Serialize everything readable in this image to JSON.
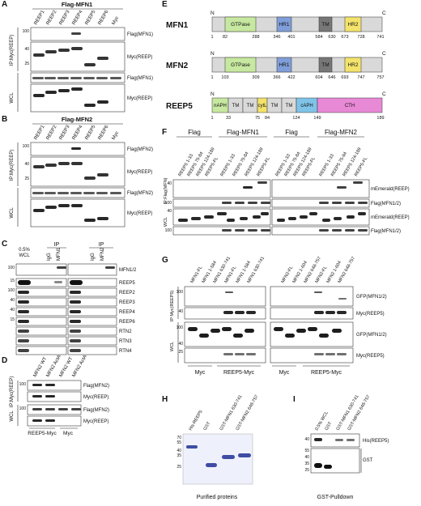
{
  "panels": {
    "A": {
      "letter": "A",
      "header": "Flag-MFN1",
      "lanes": [
        "REEP1",
        "REEP2",
        "REEP3",
        "REEP4",
        "REEP5",
        "REEP6",
        "Myc"
      ],
      "groups": [
        "IP:Myc(REEP)",
        "WCL"
      ],
      "rows": [
        "Flag(MFN1)",
        "Myc(REEP)",
        "Flag(MFN1)",
        "Myc(REEP)"
      ]
    },
    "B": {
      "letter": "B",
      "header": "Flag-MFN2",
      "lanes": [
        "REEP1",
        "REEP2",
        "REEP3",
        "REEP4",
        "REEP5",
        "REEP6",
        "Myc"
      ],
      "groups": [
        "IP:Myc(REEP)",
        "WCL"
      ],
      "rows": [
        "Flag(MFN2)",
        "Myc(REEP)",
        "Flag(MFN2)",
        "Myc(REEP)"
      ]
    },
    "C": {
      "letter": "C",
      "wcl": "0.5%\nWCL",
      "ip": "IP",
      "lanes_left": [
        "IgG",
        "MFN1"
      ],
      "lanes_right": [
        "IgG",
        "MFN2"
      ],
      "rows": [
        "MFN1/2",
        "REEP5",
        "REEP2",
        "REEP3",
        "REEP4",
        "REEP6",
        "RTN2",
        "RTN3",
        "RTN4"
      ]
    },
    "D": {
      "letter": "D",
      "lanes": [
        "MFN2 WT",
        "MFN2 ActA",
        "MFN2 WT",
        "MFN2 ActA"
      ],
      "groups": [
        "IP:Myc(REEP)",
        "WCL"
      ],
      "rows": [
        "Flag(MFN2)",
        "Myc(REEP)",
        "Flag(MFN2)",
        "Myc(REEP)"
      ],
      "bottom": [
        "REEP5-Myc",
        "Myc"
      ]
    },
    "E": {
      "letter": "E",
      "proteins": [
        {
          "name": "MFN1",
          "n": "N",
          "c": "C",
          "domains": [
            "GTPase",
            "HR1",
            "TM",
            "HR2"
          ],
          "ticks": [
            "1",
            "82",
            "288",
            "346",
            "401",
            "584",
            "630",
            "673",
            "728",
            "741"
          ]
        },
        {
          "name": "MFN2",
          "n": "N",
          "c": "C",
          "domains": [
            "GTPase",
            "HR1",
            "TM",
            "HR2"
          ],
          "ticks": [
            "1",
            "103",
            "309",
            "366",
            "422",
            "604",
            "646",
            "693",
            "747",
            "757"
          ]
        },
        {
          "name": "REEP5",
          "n": "N",
          "c": "C",
          "domains": [
            "nAPH",
            "TM",
            "TM",
            "cytL",
            "TM",
            "TM",
            "cAPH",
            "CTH"
          ],
          "ticks": [
            "1",
            "33",
            "75",
            "84",
            "124",
            "149",
            "189"
          ]
        }
      ]
    },
    "F": {
      "letter": "F",
      "headers": [
        "Flag",
        "Flag-MFN1",
        "Flag",
        "Flag-MFN2"
      ],
      "lanes": [
        "REEP5 1-33",
        "REEP5 75-84",
        "REEP5 124-189",
        "REEP5-FL"
      ],
      "groups": [
        "IP:Flag(MFN)",
        "WCL"
      ],
      "rows": [
        "mEmerald(REEP)",
        "Flag(MFN1/2)",
        "mEmerald(REEP)",
        "Flag(MFN1/2)"
      ]
    },
    "G": {
      "letter": "G",
      "lanes_left": [
        "MFN1-FL",
        "MFN1 1-584",
        "MFN1 630-741",
        "MFN1-FL",
        "MFN1 1-584",
        "MFN1 630-741"
      ],
      "lanes_right": [
        "MFN2-FL",
        "MFN2 1-604",
        "MFN2 648-757",
        "MFN2-FL",
        "MFN2 1-604",
        "MFN2 648-757"
      ],
      "groups": [
        "IP:Myc(REEP5)",
        "WCL"
      ],
      "rows": [
        "GFP(MFN1/2)",
        "Myc(REEP5)",
        "GFP(MFN1/2)",
        "Myc(REEP5)"
      ],
      "bottom": [
        "Myc",
        "REEP5-Myc",
        "Myc",
        "REEP5-Myc"
      ]
    },
    "H": {
      "letter": "H",
      "lanes": [
        "His-REEP5",
        "GST",
        "GST-MFN1 630-741",
        "GST-MFN2 648-757"
      ],
      "caption": "Purified proteins"
    },
    "I": {
      "letter": "I",
      "lanes": [
        "0.5% WCL",
        "GST",
        "GST-MFN1 630-741",
        "GST-MFN2 648-757"
      ],
      "rows": [
        "His(REEP5)",
        "GST"
      ],
      "caption": "GST-Pulldown"
    }
  },
  "mw": [
    "100",
    "40",
    "25",
    "100",
    "40",
    "25",
    "15",
    "100",
    "40",
    "15",
    "55",
    "100",
    "100",
    "100",
    "100",
    "40",
    "100",
    "100",
    "40",
    "25",
    "100",
    "40",
    "25",
    "100",
    "40",
    "55",
    "40",
    "100",
    "70",
    "55",
    "40",
    "35",
    "25",
    "55",
    "40",
    "35",
    "25",
    "15",
    "70",
    "55",
    "40",
    "35",
    "25",
    "100",
    "100",
    "130",
    "100",
    "40",
    "40",
    "100",
    "40",
    "100",
    "40",
    "100",
    "40",
    "55",
    "40",
    "35",
    "100",
    "40",
    "25",
    "15"
  ]
}
